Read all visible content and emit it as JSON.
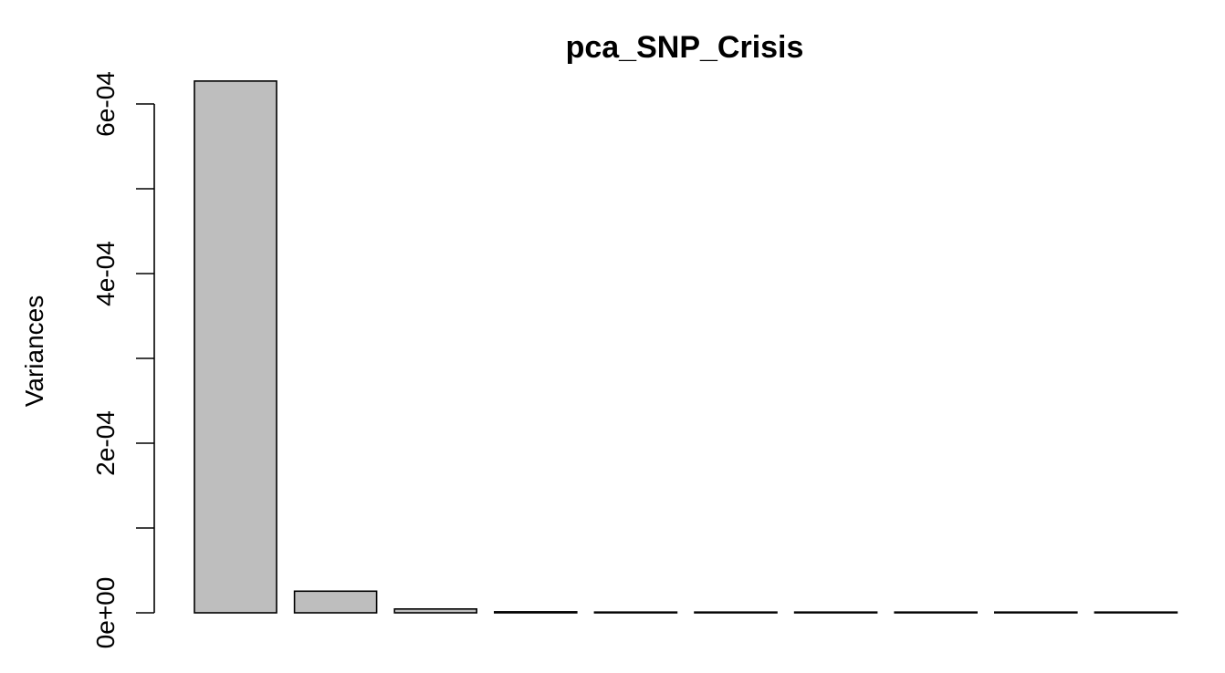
{
  "chart_data": {
    "type": "bar",
    "title": "pca_SNP_Crisis",
    "xlabel": "",
    "ylabel": "Variances",
    "categories": [
      "",
      "",
      "",
      "",
      "",
      "",
      "",
      "",
      "",
      ""
    ],
    "values": [
      0.000627,
      2.55e-05,
      4.5e-06,
      1.2e-06,
      4e-07,
      2e-07,
      1e-07,
      1e-07,
      5e-08,
      3e-08
    ],
    "ylim": [
      0,
      0.0006
    ],
    "yticks": [
      0,
      0.0001,
      0.0002,
      0.0003,
      0.0004,
      0.0005,
      0.0006
    ],
    "ytick_labels": [
      "0e+00",
      "",
      "2e-04",
      "",
      "4e-04",
      "",
      "6e-04"
    ],
    "bar_color": "#bebebe",
    "grid": false
  }
}
